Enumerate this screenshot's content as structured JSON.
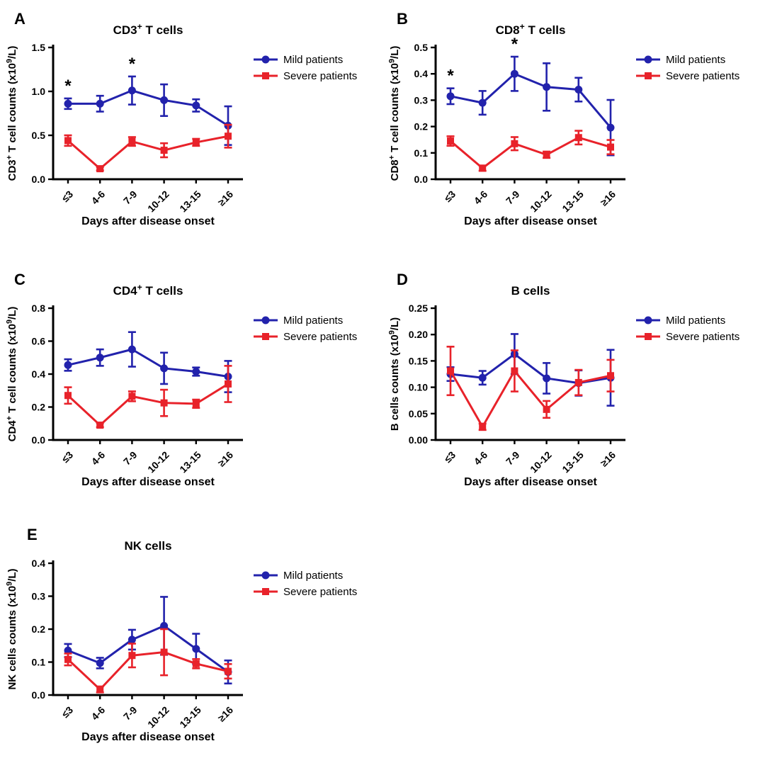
{
  "figure": {
    "background": "#ffffff",
    "colors": {
      "mild": "#2222ac",
      "severe": "#e8222a",
      "axis": "#000000",
      "text": "#000000"
    },
    "legend": [
      "Mild patients",
      "Severe patients"
    ],
    "x_axis_label": "Days after disease onset",
    "categories": [
      "≤3",
      "4-6",
      "7-9",
      "10-12",
      "13-15",
      "≥16"
    ]
  },
  "chart_data": [
    {
      "panel_letter": "A",
      "type": "line",
      "title_parts": [
        {
          "t": "CD3"
        },
        {
          "t": "+",
          "sup": true
        },
        {
          "t": " T cells"
        }
      ],
      "ylabel_parts": [
        {
          "t": "CD3"
        },
        {
          "t": "+",
          "sup": true
        },
        {
          "t": " T cell counts (x10"
        },
        {
          "t": "9",
          "sup": true
        },
        {
          "t": "/L)"
        }
      ],
      "xlabel": "Days after disease onset",
      "categories": [
        "≤3",
        "4-6",
        "7-9",
        "10-12",
        "13-15",
        "≥16"
      ],
      "ylim": [
        0,
        1.5
      ],
      "yticks": [
        {
          "v": 0.0,
          "label": "0.0"
        },
        {
          "v": 0.5,
          "label": "0.5"
        },
        {
          "v": 1.0,
          "label": "1.0"
        },
        {
          "v": 1.5,
          "label": "1.5"
        }
      ],
      "series": [
        {
          "name": "Mild patients",
          "marker": "circle",
          "color": "#2222ac",
          "values": [
            0.86,
            0.86,
            1.01,
            0.9,
            0.84,
            0.61
          ],
          "errors": [
            0.06,
            0.09,
            0.16,
            0.18,
            0.07,
            0.22
          ]
        },
        {
          "name": "Severe patients",
          "marker": "square",
          "color": "#e8222a",
          "values": [
            0.44,
            0.12,
            0.43,
            0.33,
            0.42,
            0.49
          ],
          "errors": [
            0.06,
            0.02,
            0.05,
            0.08,
            0.04,
            0.13
          ]
        }
      ],
      "significance": [
        {
          "category_index": 0,
          "symbol": "*"
        },
        {
          "category_index": 2,
          "symbol": "*"
        }
      ]
    },
    {
      "panel_letter": "B",
      "type": "line",
      "title_parts": [
        {
          "t": "CD8"
        },
        {
          "t": "+",
          "sup": true
        },
        {
          "t": " T cells"
        }
      ],
      "ylabel_parts": [
        {
          "t": "CD8"
        },
        {
          "t": "+",
          "sup": true
        },
        {
          "t": " T cell counts (x10"
        },
        {
          "t": "9",
          "sup": true
        },
        {
          "t": "/L)"
        }
      ],
      "xlabel": "Days after disease onset",
      "categories": [
        "≤3",
        "4-6",
        "7-9",
        "10-12",
        "13-15",
        "≥16"
      ],
      "ylim": [
        0,
        0.5
      ],
      "yticks": [
        {
          "v": 0.0,
          "label": "0.0"
        },
        {
          "v": 0.1,
          "label": "0.1"
        },
        {
          "v": 0.2,
          "label": "0.2"
        },
        {
          "v": 0.3,
          "label": "0.3"
        },
        {
          "v": 0.4,
          "label": "0.4"
        },
        {
          "v": 0.5,
          "label": "0.5"
        }
      ],
      "series": [
        {
          "name": "Mild patients",
          "marker": "circle",
          "color": "#2222ac",
          "values": [
            0.315,
            0.29,
            0.4,
            0.35,
            0.34,
            0.196
          ],
          "errors": [
            0.03,
            0.045,
            0.065,
            0.09,
            0.045,
            0.105
          ]
        },
        {
          "name": "Severe patients",
          "marker": "square",
          "color": "#e8222a",
          "values": [
            0.145,
            0.042,
            0.135,
            0.093,
            0.158,
            0.122
          ],
          "errors": [
            0.018,
            0.01,
            0.025,
            0.012,
            0.026,
            0.027
          ]
        }
      ],
      "significance": [
        {
          "category_index": 0,
          "symbol": "*"
        },
        {
          "category_index": 2,
          "symbol": "*"
        }
      ]
    },
    {
      "panel_letter": "C",
      "type": "line",
      "title_parts": [
        {
          "t": "CD4"
        },
        {
          "t": "+",
          "sup": true
        },
        {
          "t": " T cells"
        }
      ],
      "ylabel_parts": [
        {
          "t": "CD4"
        },
        {
          "t": "+",
          "sup": true
        },
        {
          "t": " T cell counts (x10"
        },
        {
          "t": "9",
          "sup": true
        },
        {
          "t": "/L)"
        }
      ],
      "xlabel": "Days after disease onset",
      "categories": [
        "≤3",
        "4-6",
        "7-9",
        "10-12",
        "13-15",
        "≥16"
      ],
      "ylim": [
        0,
        0.8
      ],
      "yticks": [
        {
          "v": 0.0,
          "label": "0.0"
        },
        {
          "v": 0.2,
          "label": "0.2"
        },
        {
          "v": 0.4,
          "label": "0.4"
        },
        {
          "v": 0.6,
          "label": "0.6"
        },
        {
          "v": 0.8,
          "label": "0.8"
        }
      ],
      "series": [
        {
          "name": "Mild patients",
          "marker": "circle",
          "color": "#2222ac",
          "values": [
            0.455,
            0.5,
            0.55,
            0.435,
            0.415,
            0.385
          ],
          "errors": [
            0.035,
            0.05,
            0.105,
            0.095,
            0.025,
            0.095
          ]
        },
        {
          "name": "Severe patients",
          "marker": "square",
          "color": "#e8222a",
          "values": [
            0.27,
            0.09,
            0.265,
            0.225,
            0.22,
            0.34
          ],
          "errors": [
            0.05,
            0.012,
            0.03,
            0.08,
            0.025,
            0.11
          ]
        }
      ],
      "significance": []
    },
    {
      "panel_letter": "D",
      "type": "line",
      "title_parts": [
        {
          "t": "B cells"
        }
      ],
      "ylabel_parts": [
        {
          "t": "B cells counts (x10"
        },
        {
          "t": "9",
          "sup": true
        },
        {
          "t": "/L)"
        }
      ],
      "xlabel": "Days after disease onset",
      "categories": [
        "≤3",
        "4-6",
        "7-9",
        "10-12",
        "13-15",
        "≥16"
      ],
      "ylim": [
        0,
        0.25
      ],
      "yticks": [
        {
          "v": 0.0,
          "label": "0.00"
        },
        {
          "v": 0.05,
          "label": "0.05"
        },
        {
          "v": 0.1,
          "label": "0.10"
        },
        {
          "v": 0.15,
          "label": "0.15"
        },
        {
          "v": 0.2,
          "label": "0.20"
        },
        {
          "v": 0.25,
          "label": "0.25"
        }
      ],
      "series": [
        {
          "name": "Mild patients",
          "marker": "circle",
          "color": "#2222ac",
          "values": [
            0.125,
            0.118,
            0.163,
            0.117,
            0.108,
            0.118
          ],
          "errors": [
            0.013,
            0.013,
            0.038,
            0.029,
            0.024,
            0.053
          ]
        },
        {
          "name": "Severe patients",
          "marker": "square",
          "color": "#e8222a",
          "values": [
            0.131,
            0.025,
            0.131,
            0.058,
            0.109,
            0.122
          ],
          "errors": [
            0.046,
            0.006,
            0.039,
            0.016,
            0.024,
            0.03
          ]
        }
      ],
      "significance": []
    },
    {
      "panel_letter": "E",
      "type": "line",
      "title_parts": [
        {
          "t": "NK cells"
        }
      ],
      "ylabel_parts": [
        {
          "t": "NK cells counts (x10"
        },
        {
          "t": "9",
          "sup": true
        },
        {
          "t": "/L)"
        }
      ],
      "xlabel": "Days after disease onset",
      "categories": [
        "≤3",
        "4-6",
        "7-9",
        "10-12",
        "13-15",
        "≥16"
      ],
      "ylim": [
        0,
        0.4
      ],
      "yticks": [
        {
          "v": 0.0,
          "label": "0.0"
        },
        {
          "v": 0.1,
          "label": "0.1"
        },
        {
          "v": 0.2,
          "label": "0.2"
        },
        {
          "v": 0.3,
          "label": "0.3"
        },
        {
          "v": 0.4,
          "label": "0.4"
        }
      ],
      "series": [
        {
          "name": "Mild patients",
          "marker": "circle",
          "color": "#2222ac",
          "values": [
            0.135,
            0.097,
            0.168,
            0.21,
            0.14,
            0.07
          ],
          "errors": [
            0.02,
            0.016,
            0.03,
            0.088,
            0.046,
            0.035
          ]
        },
        {
          "name": "Severe patients",
          "marker": "square",
          "color": "#e8222a",
          "values": [
            0.108,
            0.017,
            0.12,
            0.13,
            0.095,
            0.072
          ],
          "errors": [
            0.018,
            0.009,
            0.036,
            0.07,
            0.014,
            0.022
          ]
        }
      ],
      "significance": []
    }
  ]
}
